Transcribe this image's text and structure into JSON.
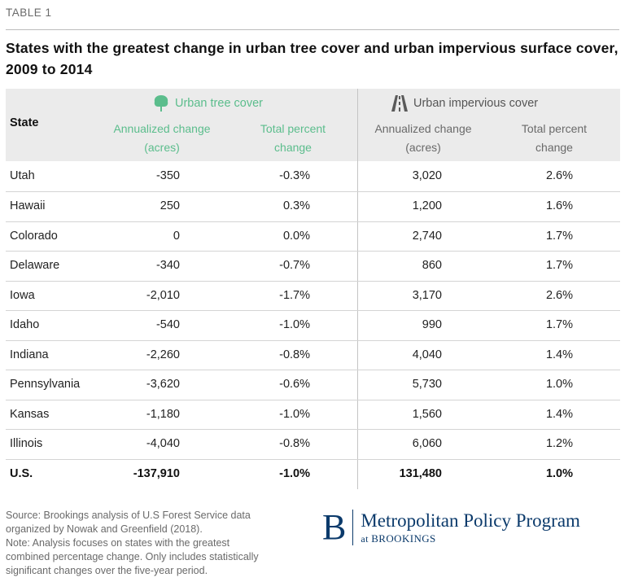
{
  "table_label": "TABLE 1",
  "title": "States with the greatest change in urban tree cover and urban impervious surface cover, 2009 to 2014",
  "headers": {
    "state": "State",
    "tree_group": "Urban tree cover",
    "impervious_group": "Urban impervious cover",
    "tree_annual_1": "Annualized change",
    "tree_annual_2": "(acres)",
    "tree_pct_1": "Total percent",
    "tree_pct_2": "change",
    "imp_annual_1": "Annualized change",
    "imp_annual_2": "(acres)",
    "imp_pct_1": "Total percent",
    "imp_pct_2": "change"
  },
  "icons": {
    "tree": "tree-icon",
    "road": "road-icon"
  },
  "colors": {
    "tree_accent": "#5bbd8c",
    "header_bg": "#ebebeb",
    "brand_blue": "#0b3a6b"
  },
  "rows": [
    {
      "state": "Utah",
      "tree_annual": "-350",
      "tree_pct": "-0.3%",
      "imp_annual": "3,020",
      "imp_pct": "2.6%"
    },
    {
      "state": "Hawaii",
      "tree_annual": "250",
      "tree_pct": "0.3%",
      "imp_annual": "1,200",
      "imp_pct": "1.6%"
    },
    {
      "state": "Colorado",
      "tree_annual": "0",
      "tree_pct": "0.0%",
      "imp_annual": "2,740",
      "imp_pct": "1.7%"
    },
    {
      "state": "Delaware",
      "tree_annual": "-340",
      "tree_pct": "-0.7%",
      "imp_annual": "860",
      "imp_pct": "1.7%"
    },
    {
      "state": "Iowa",
      "tree_annual": "-2,010",
      "tree_pct": "-1.7%",
      "imp_annual": "3,170",
      "imp_pct": "2.6%"
    },
    {
      "state": "Idaho",
      "tree_annual": "-540",
      "tree_pct": "-1.0%",
      "imp_annual": "990",
      "imp_pct": "1.7%"
    },
    {
      "state": "Indiana",
      "tree_annual": "-2,260",
      "tree_pct": "-0.8%",
      "imp_annual": "4,040",
      "imp_pct": "1.4%"
    },
    {
      "state": "Pennsylvania",
      "tree_annual": "-3,620",
      "tree_pct": "-0.6%",
      "imp_annual": "5,730",
      "imp_pct": "1.0%"
    },
    {
      "state": "Kansas",
      "tree_annual": "-1,180",
      "tree_pct": "-1.0%",
      "imp_annual": "1,560",
      "imp_pct": "1.4%"
    },
    {
      "state": "Illinois",
      "tree_annual": "-4,040",
      "tree_pct": "-0.8%",
      "imp_annual": "6,060",
      "imp_pct": "1.2%"
    },
    {
      "state": "U.S.",
      "tree_annual": "-137,910",
      "tree_pct": "-1.0%",
      "imp_annual": "131,480",
      "imp_pct": "1.0%"
    }
  ],
  "source_lines": [
    "Source: Brookings analysis of U.S Forest Service data",
    "organized by Nowak and Greenfield (2018).",
    "Note: Analysis focuses on states with the greatest",
    "combined percentage change. Only includes statistically",
    "significant changes over the five-year period."
  ],
  "logo": {
    "letter": "B",
    "name": "Metropolitan Policy Program",
    "sub_at": "at ",
    "sub_org": "BROOKINGS"
  }
}
